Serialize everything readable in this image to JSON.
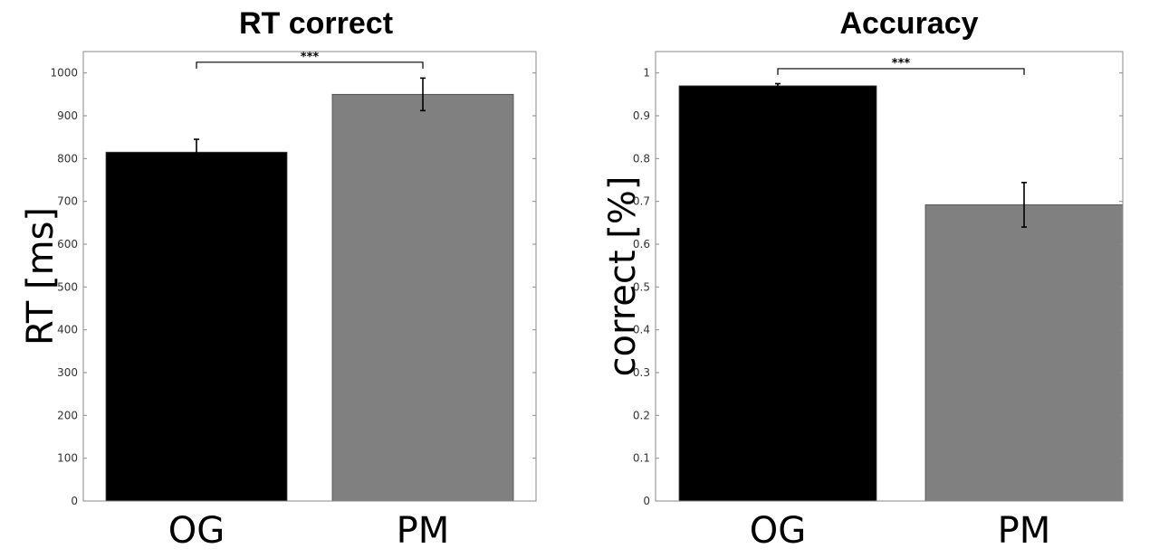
{
  "chart_data": [
    {
      "type": "bar",
      "title": "RT correct",
      "xlabel": "",
      "ylabel": "RT [ms]",
      "categories": [
        "OG",
        "PM"
      ],
      "values": [
        815,
        950
      ],
      "error": [
        30,
        38
      ],
      "colors": [
        "#000000",
        "#808080"
      ],
      "ylim": [
        0,
        1050
      ],
      "yticks": [
        0,
        100,
        200,
        300,
        400,
        500,
        600,
        700,
        800,
        900,
        1000
      ],
      "significance": {
        "pair": [
          0,
          1
        ],
        "label": "***",
        "y": 1025
      },
      "grid": false
    },
    {
      "type": "bar",
      "title": "Accuracy",
      "xlabel": "",
      "ylabel": "correct [%]",
      "categories": [
        "OG",
        "PM"
      ],
      "values": [
        0.97,
        0.692
      ],
      "error": [
        0.005,
        0.052
      ],
      "colors": [
        "#000000",
        "#808080"
      ],
      "ylim": [
        0,
        1.05
      ],
      "yticks": [
        0,
        0.1,
        0.2,
        0.3,
        0.4,
        0.5,
        0.6,
        0.7,
        0.8,
        0.9,
        1
      ],
      "significance": {
        "pair": [
          0,
          1
        ],
        "label": "***",
        "y": 1.01
      },
      "grid": false
    }
  ]
}
